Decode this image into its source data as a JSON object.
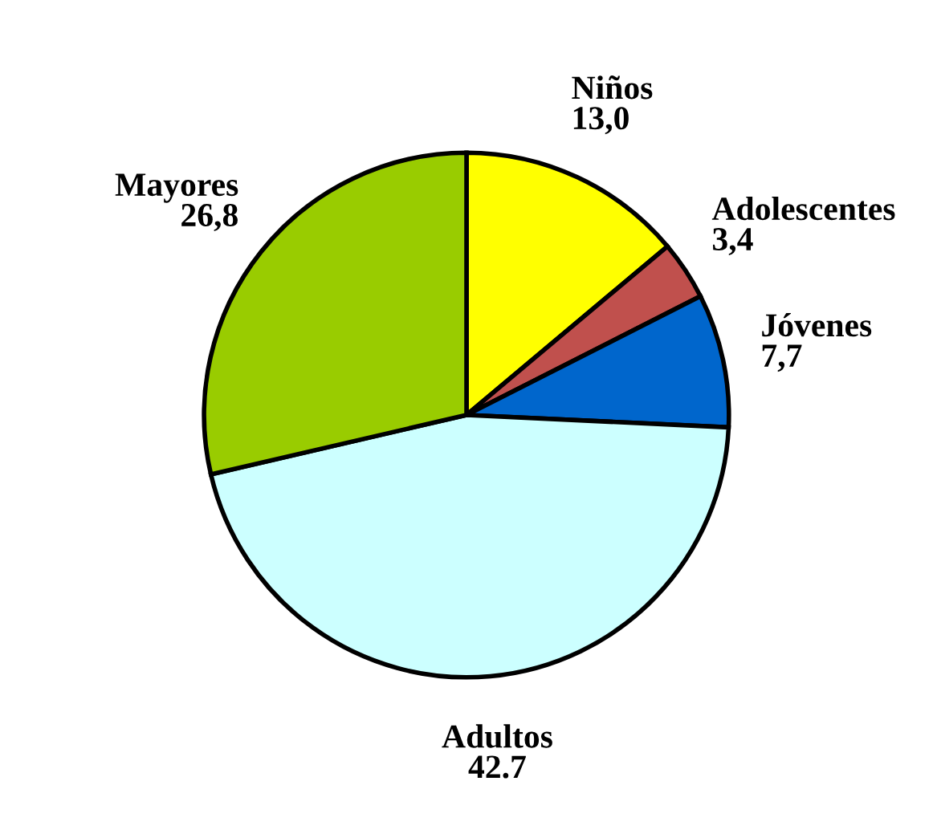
{
  "chart_data": {
    "type": "pie",
    "categories": [
      "Niños",
      "Adolescentes",
      "Jóvenes",
      "Adultos",
      "Mayores"
    ],
    "values": [
      13.0,
      3.4,
      7.7,
      42.7,
      26.8
    ],
    "value_labels": [
      "13,0",
      "3,4",
      "7,7",
      "42.7",
      "26,8"
    ],
    "colors": [
      "#ffff00",
      "#c0504d",
      "#0066cc",
      "#ccffff",
      "#99cc00"
    ],
    "legend": false
  }
}
